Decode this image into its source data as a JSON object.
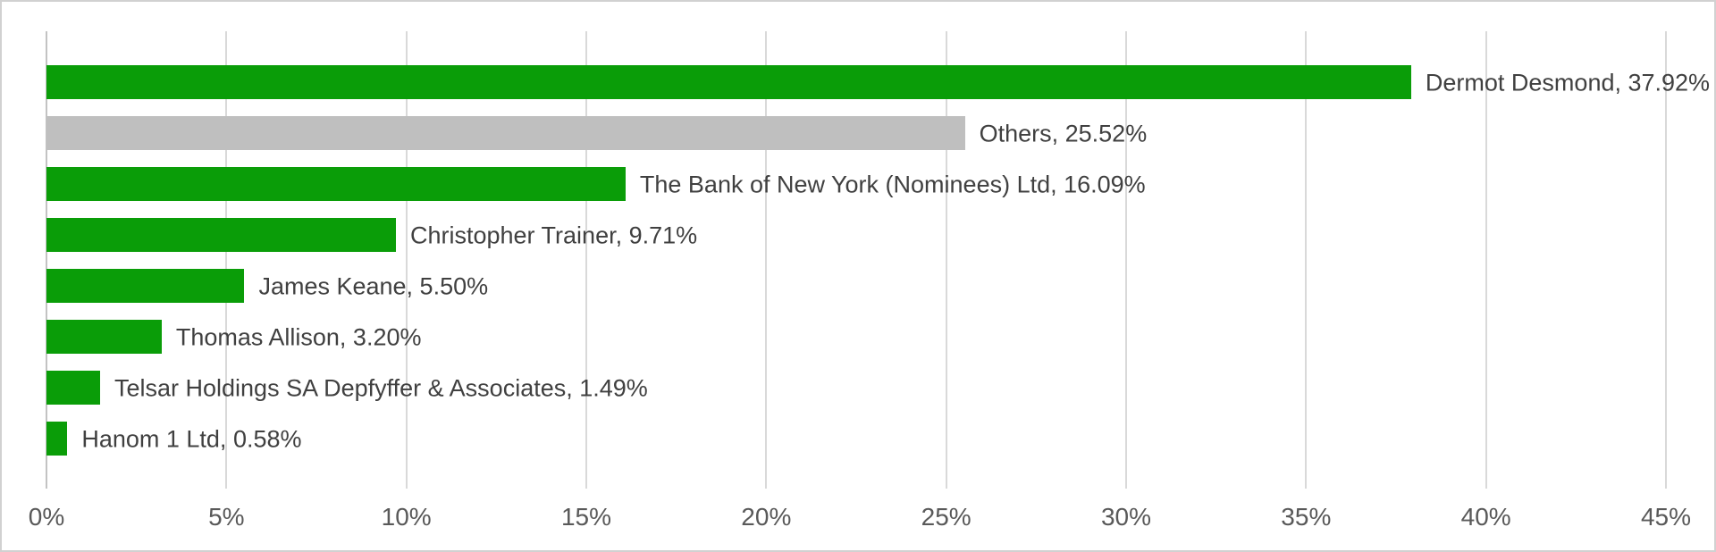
{
  "chart_data": {
    "type": "bar",
    "orientation": "horizontal",
    "title": "",
    "xlabel": "",
    "ylabel": "",
    "xlim": [
      0,
      45
    ],
    "grid": "vertical-only",
    "legend": "none",
    "data_labels": "outside-end",
    "categories": [
      "Dermot Desmond",
      "Others",
      "The Bank of New York (Nominees) Ltd",
      "Christopher Trainer",
      "James Keane",
      "Thomas Allison",
      "Telsar Holdings SA Depfyffer & Associates",
      "Hanom 1 Ltd"
    ],
    "values": [
      37.92,
      25.52,
      16.09,
      9.71,
      5.5,
      3.2,
      1.49,
      0.58
    ],
    "bars": [
      {
        "label": "Dermot Desmond, 37.92%",
        "value": 37.92,
        "color": "#0a9d08"
      },
      {
        "label": "Others, 25.52%",
        "value": 25.52,
        "color": "#bfbfbf"
      },
      {
        "label": "The Bank of New York (Nominees) Ltd, 16.09%",
        "value": 16.09,
        "color": "#0a9d08"
      },
      {
        "label": "Christopher Trainer, 9.71%",
        "value": 9.71,
        "color": "#0a9d08"
      },
      {
        "label": "James Keane, 5.50%",
        "value": 5.5,
        "color": "#0a9d08"
      },
      {
        "label": "Thomas Allison, 3.20%",
        "value": 3.2,
        "color": "#0a9d08"
      },
      {
        "label": "Telsar Holdings SA Depfyffer & Associates, 1.49%",
        "value": 1.49,
        "color": "#0a9d08"
      },
      {
        "label": "Hanom 1 Ltd, 0.58%",
        "value": 0.58,
        "color": "#0a9d08"
      }
    ],
    "x_ticks": [
      {
        "label": "0%",
        "value": 0
      },
      {
        "label": "5%",
        "value": 5
      },
      {
        "label": "10%",
        "value": 10
      },
      {
        "label": "15%",
        "value": 15
      },
      {
        "label": "20%",
        "value": 20
      },
      {
        "label": "25%",
        "value": 25
      },
      {
        "label": "30%",
        "value": 30
      },
      {
        "label": "35%",
        "value": 35
      },
      {
        "label": "40%",
        "value": 40
      },
      {
        "label": "45%",
        "value": 45
      }
    ]
  },
  "colors": {
    "bar_green": "#0a9d08",
    "bar_gray": "#bfbfbf",
    "gridline": "#d9d9d9",
    "axis_line": "#c3c3c3",
    "bar_label_text": "#404040",
    "tick_text": "#595959",
    "border": "#d1d1d1",
    "background": "#ffffff"
  }
}
